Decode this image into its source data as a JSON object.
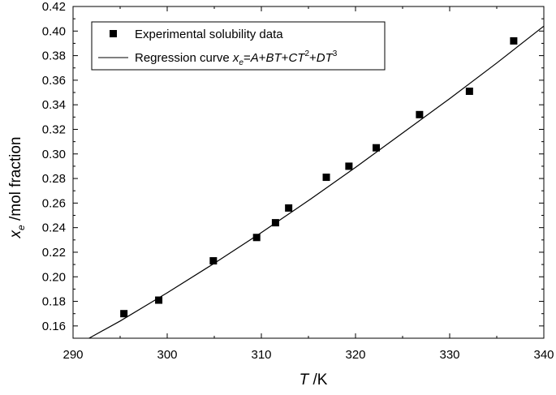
{
  "chart_data": {
    "type": "scatter",
    "xlabel": {
      "italic": "T",
      "rest": " /K"
    },
    "ylabel": {
      "italic": "x",
      "sub": "e",
      "rest": " /mol fraction"
    },
    "xlim": [
      290,
      340
    ],
    "ylim": [
      0.15,
      0.42
    ],
    "x_ticks": [
      "290",
      "300",
      "310",
      "320",
      "330",
      "340"
    ],
    "y_ticks": [
      "0.16",
      "0.18",
      "0.20",
      "0.22",
      "0.24",
      "0.26",
      "0.28",
      "0.30",
      "0.32",
      "0.34",
      "0.36",
      "0.38",
      "0.40",
      "0.42"
    ],
    "legend": {
      "placement": "top-left",
      "entries": [
        {
          "marker": "square",
          "label": "Experimental solubility data"
        },
        {
          "marker": "line",
          "label_prefix": "Regression curve ",
          "formula": "x_e=A+BT+CT^2+DT^3"
        }
      ]
    },
    "series": [
      {
        "name": "Experimental solubility data",
        "marker": "square",
        "color": "#000000",
        "x": [
          295.4,
          299.1,
          304.9,
          309.5,
          311.5,
          312.9,
          316.9,
          319.3,
          322.2,
          326.8,
          332.1,
          336.8
        ],
        "y": [
          0.17,
          0.181,
          0.213,
          0.232,
          0.244,
          0.256,
          0.281,
          0.29,
          0.305,
          0.332,
          0.351,
          0.392
        ]
      },
      {
        "name": "Regression curve",
        "style": "line",
        "color": "#000000",
        "x": [
          291.7,
          295,
          300,
          305,
          310,
          315,
          320,
          325,
          330,
          335,
          340
        ],
        "y": [
          0.15,
          0.164,
          0.187,
          0.211,
          0.236,
          0.262,
          0.289,
          0.317,
          0.345,
          0.374,
          0.404
        ]
      }
    ]
  }
}
